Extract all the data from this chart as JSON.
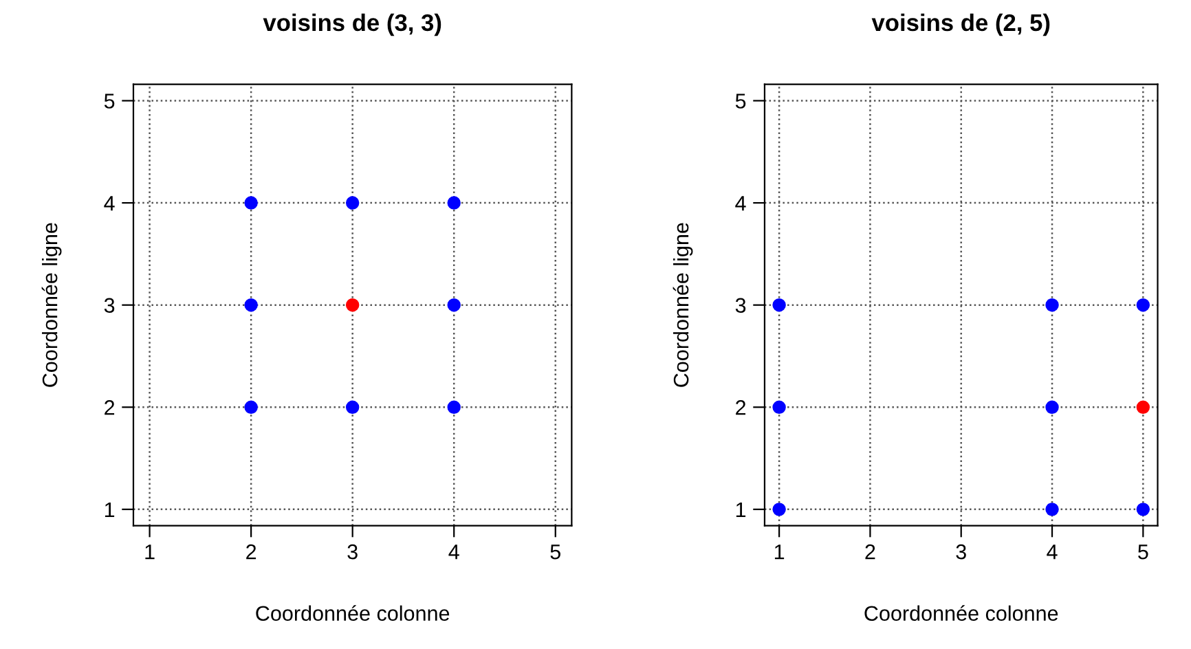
{
  "chart_data": [
    {
      "type": "scatter",
      "title": "voisins de (3, 3)",
      "xlabel": "Coordonnée colonne",
      "ylabel": "Coordonnée ligne",
      "xlim": [
        0.84,
        5.16
      ],
      "ylim": [
        0.84,
        5.16
      ],
      "xticks": [
        1,
        2,
        3,
        4,
        5
      ],
      "yticks": [
        1,
        2,
        3,
        4,
        5
      ],
      "grid": true,
      "marker": "circle",
      "series": [
        {
          "color": "#0000ff",
          "x": [
            2,
            2,
            2,
            3,
            3,
            4,
            4,
            4
          ],
          "values": [
            2,
            3,
            4,
            2,
            4,
            2,
            3,
            4
          ]
        },
        {
          "color": "#ff0000",
          "x": [
            3
          ],
          "values": [
            3
          ]
        }
      ]
    },
    {
      "type": "scatter",
      "title": "voisins de (2, 5)",
      "xlabel": "Coordonnée colonne",
      "ylabel": "Coordonnée ligne",
      "xlim": [
        0.84,
        5.16
      ],
      "ylim": [
        0.84,
        5.16
      ],
      "xticks": [
        1,
        2,
        3,
        4,
        5
      ],
      "yticks": [
        1,
        2,
        3,
        4,
        5
      ],
      "grid": true,
      "marker": "circle",
      "series": [
        {
          "color": "#0000ff",
          "x": [
            1,
            1,
            1,
            4,
            4,
            4,
            5,
            5
          ],
          "values": [
            1,
            2,
            3,
            1,
            2,
            3,
            1,
            3
          ]
        },
        {
          "color": "#ff0000",
          "x": [
            5
          ],
          "values": [
            2
          ]
        }
      ]
    }
  ]
}
